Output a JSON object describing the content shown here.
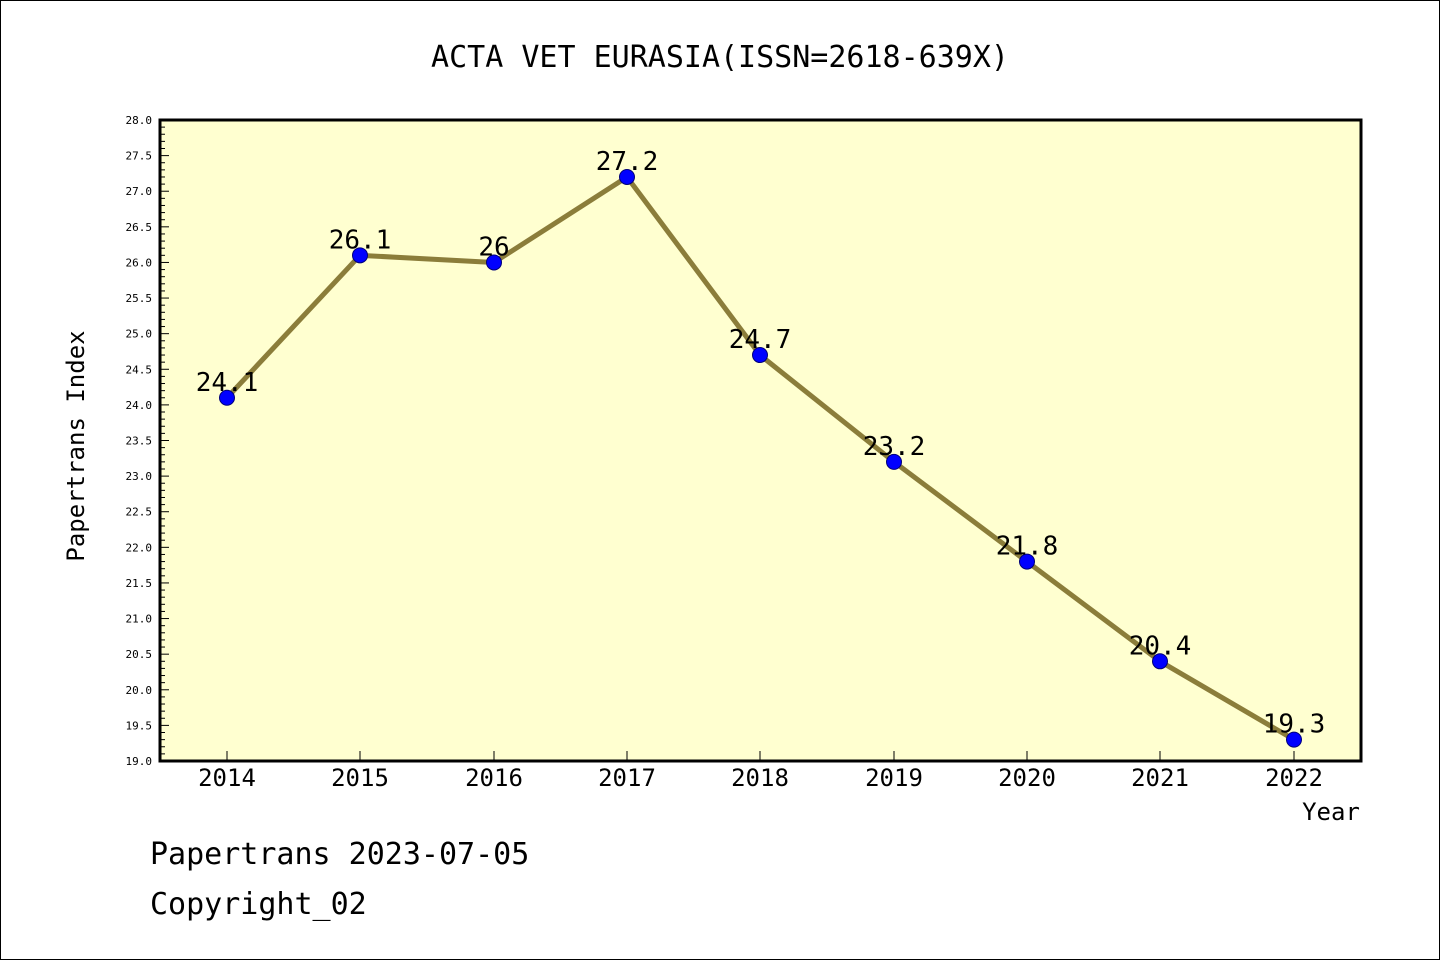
{
  "chart_data": {
    "type": "line",
    "title": "ACTA VET EURASIA(ISSN=2618-639X)",
    "xlabel": "Year",
    "ylabel": "Papertrans Index",
    "categories": [
      "2014",
      "2015",
      "2016",
      "2017",
      "2018",
      "2019",
      "2020",
      "2021",
      "2022"
    ],
    "series": [
      {
        "values": [
          24.1,
          26.1,
          26,
          27.2,
          24.7,
          23.2,
          21.8,
          20.4,
          19.3
        ],
        "labels": [
          "24.1",
          "26.1",
          "26",
          "27.2",
          "24.7",
          "23.2",
          "21.8",
          "20.4",
          "19.3"
        ]
      }
    ],
    "ylim": [
      19.0,
      28.0
    ],
    "yticks": [
      "19.0",
      "19.5",
      "20.0",
      "20.5",
      "21.0",
      "21.5",
      "22.0",
      "22.5",
      "23.0",
      "23.5",
      "24.0",
      "24.5",
      "25.0",
      "25.5",
      "26.0",
      "26.5",
      "27.0",
      "27.5",
      "28.0"
    ],
    "grid": false,
    "colors": {
      "plot_background": "#ffffd0",
      "line": "#8b7d3a",
      "marker": "#0000ff"
    }
  },
  "footer": {
    "line1": "Papertrans 2023-07-05",
    "line2": "Copyright_02"
  }
}
